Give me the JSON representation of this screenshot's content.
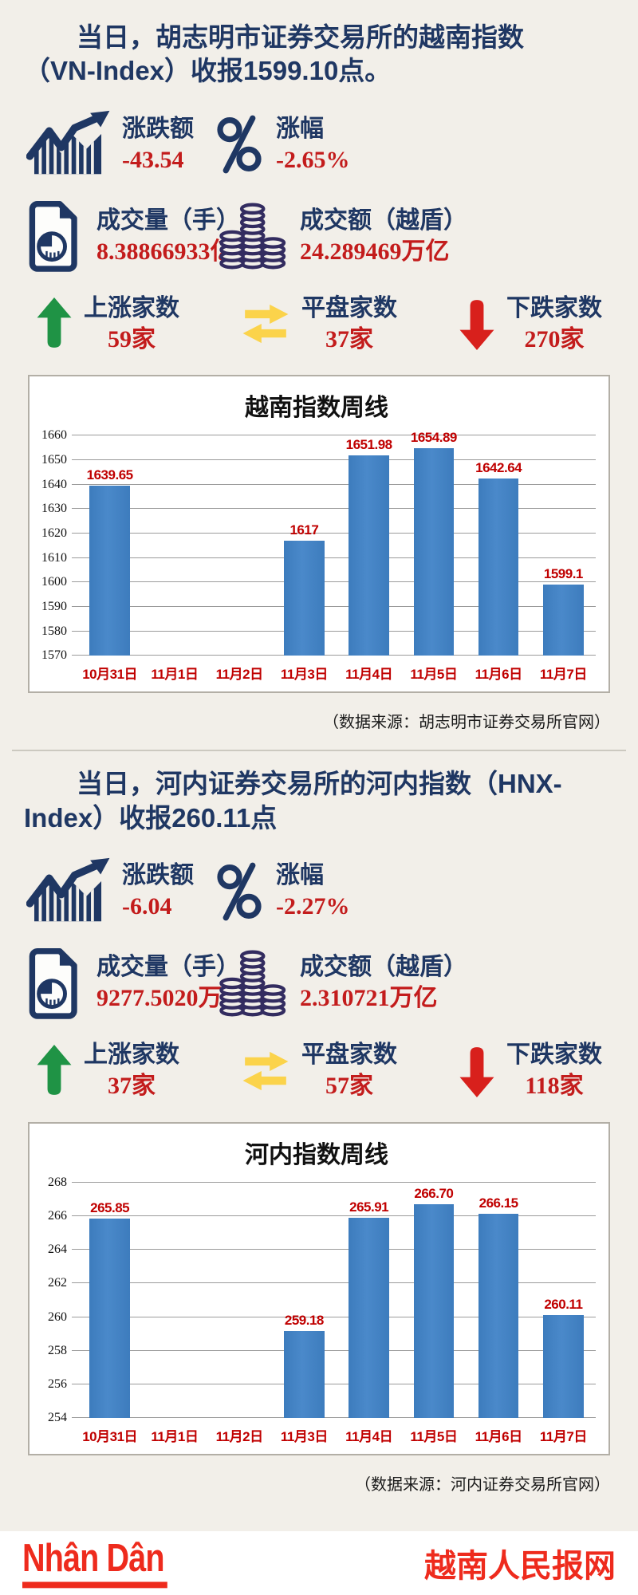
{
  "colors": {
    "background": "#f2efe9",
    "navy": "#1f3763",
    "value_red": "#c31c1c",
    "date_red": "#c00000",
    "bar_blue": "#3d7cbd",
    "up_green": "#1f9345",
    "flat_yellow": "#fbd34b",
    "down_arrow_red": "#d8201c",
    "logo_red": "#ee2b1d"
  },
  "sections": [
    {
      "title_lines": [
        "当日，胡志明市证券交易所的越南指数",
        "（VN-Index）收报1599.10点。"
      ],
      "stats": [
        {
          "icon": "trend-chart-icon",
          "label": "涨跌额",
          "value": "-43.54"
        },
        {
          "icon": "percent-icon",
          "label": "涨幅",
          "value": "-2.65%"
        },
        {
          "icon": "volume-document-icon",
          "label": "成交量（手）",
          "value": "8.38866933亿"
        },
        {
          "icon": "coins-icon",
          "label": "成交额（越盾）",
          "value": "24.289469万亿"
        },
        {
          "icon": "up-arrow-icon",
          "label": "上涨家数",
          "value": "59家"
        },
        {
          "icon": "transfer-arrows-icon",
          "label": "平盘家数",
          "value": "37家"
        },
        {
          "icon": "down-arrow-icon",
          "label": "下跌家数",
          "value": "270家"
        }
      ],
      "source": "（数据来源：胡志明市证券交易所官网）"
    },
    {
      "title_lines": [
        "当日，河内证券交易所的河内指数（HNX-",
        "Index）收报260.11点"
      ],
      "stats": [
        {
          "icon": "trend-chart-icon",
          "label": "涨跌额",
          "value": "-6.04"
        },
        {
          "icon": "percent-icon",
          "label": "涨幅",
          "value": "-2.27%"
        },
        {
          "icon": "volume-document-icon",
          "label": "成交量（手）",
          "value": "9277.5020万"
        },
        {
          "icon": "coins-icon",
          "label": "成交额（越盾）",
          "value": "2.310721万亿"
        },
        {
          "icon": "up-arrow-icon",
          "label": "上涨家数",
          "value": "37家"
        },
        {
          "icon": "transfer-arrows-icon",
          "label": "平盘家数",
          "value": "57家"
        },
        {
          "icon": "down-arrow-icon",
          "label": "下跌家数",
          "value": "118家"
        }
      ],
      "source": "（数据来源：河内证券交易所官网）"
    }
  ],
  "chart_data": [
    {
      "type": "bar",
      "title": "越南指数周线",
      "categories": [
        "10月31日",
        "11月1日",
        "11月2日",
        "11月3日",
        "11月4日",
        "11月5日",
        "11月6日",
        "11月7日"
      ],
      "values": [
        1639.65,
        null,
        null,
        1617,
        1651.98,
        1654.89,
        1642.64,
        1599.1
      ],
      "bar_labels": [
        "1639.65",
        "",
        "",
        "1617",
        "1651.98",
        "1654.89",
        "1642.64",
        "1599.1"
      ],
      "ylim": [
        1570,
        1660
      ],
      "ytick_step": 10,
      "grid": true,
      "legend": false,
      "bar_color": "#3d7cbd",
      "label_color": "#c00000"
    },
    {
      "type": "bar",
      "title": "河内指数周线",
      "categories": [
        "10月31日",
        "11月1日",
        "11月2日",
        "11月3日",
        "11月4日",
        "11月5日",
        "11月6日",
        "11月7日"
      ],
      "values": [
        265.85,
        null,
        null,
        259.18,
        265.91,
        266.7,
        266.15,
        260.11
      ],
      "bar_labels": [
        "265.85",
        "",
        "",
        "259.18",
        "265.91",
        "266.70",
        "266.15",
        "260.11"
      ],
      "ylim": [
        254,
        268
      ],
      "ytick_step": 2,
      "grid": true,
      "legend": false,
      "bar_color": "#3d7cbd",
      "label_color": "#c00000"
    }
  ],
  "footer": {
    "logo": "Nhân Dân",
    "site": "越南人民报网"
  }
}
